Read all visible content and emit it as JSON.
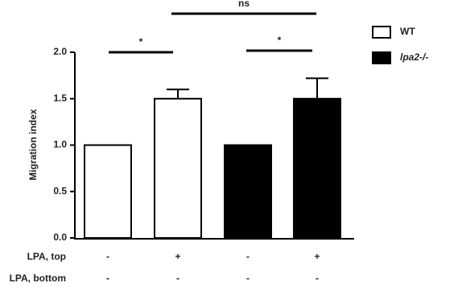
{
  "chart_data": {
    "type": "bar",
    "y_label": "Migration index",
    "ylim": [
      0,
      2
    ],
    "yticks": [
      {
        "value": 0,
        "label": "0.0"
      },
      {
        "value": 0.5,
        "label": "0.5"
      },
      {
        "value": 1,
        "label": "1.0"
      },
      {
        "value": 1.5,
        "label": "1.5"
      },
      {
        "value": 2,
        "label": "2.0"
      }
    ],
    "series": [
      {
        "name": "WT",
        "color": "#ffffff",
        "values": [
          1.0,
          1.5
        ],
        "errors": [
          0,
          0.1
        ]
      },
      {
        "name": "lpa2-/-",
        "color": "#000000",
        "values": [
          1.0,
          1.5
        ],
        "errors": [
          0,
          0.22
        ]
      }
    ],
    "conditions": [
      {
        "label": "LPA, top",
        "values": [
          "-",
          "+",
          "-",
          "+"
        ]
      },
      {
        "label": "LPA, bottom",
        "values": [
          "-",
          "-",
          "-",
          "-"
        ]
      }
    ],
    "annotations": [
      "*",
      "ns",
      "*"
    ]
  }
}
